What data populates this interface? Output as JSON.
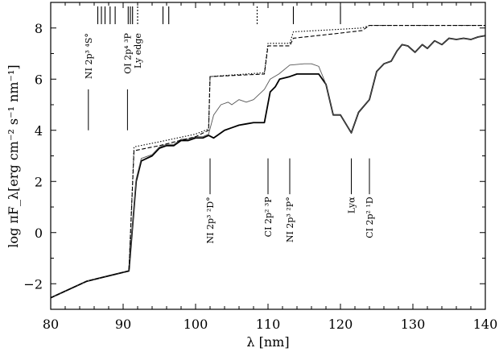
{
  "chart_data": {
    "type": "line",
    "xlabel": "λ [nm]",
    "ylabel": "log πF_λ[erg cm⁻² s⁻¹ nm⁻¹]",
    "xlim": [
      80,
      140
    ],
    "ylim": [
      -3,
      9
    ],
    "x_ticks": [
      80,
      90,
      100,
      110,
      120,
      130,
      140
    ],
    "y_ticks": [
      -2,
      0,
      2,
      4,
      6,
      8
    ],
    "series": [
      {
        "style": "solid-thick",
        "points": [
          [
            80,
            -2.55
          ],
          [
            85,
            -1.9
          ],
          [
            90.8,
            -1.5
          ],
          [
            91.8,
            2.0
          ],
          [
            92.5,
            2.8
          ],
          [
            94,
            3.0
          ],
          [
            95,
            3.3
          ],
          [
            96,
            3.4
          ],
          [
            97,
            3.4
          ],
          [
            98,
            3.6
          ],
          [
            99,
            3.6
          ],
          [
            100,
            3.7
          ],
          [
            101,
            3.7
          ],
          [
            101.8,
            3.8
          ],
          [
            102.5,
            3.7
          ],
          [
            103,
            3.8
          ],
          [
            104,
            4.0
          ],
          [
            105,
            4.1
          ],
          [
            106,
            4.2
          ],
          [
            107,
            4.25
          ],
          [
            108,
            4.3
          ],
          [
            109.5,
            4.3
          ],
          [
            110.3,
            5.5
          ],
          [
            111,
            5.7
          ],
          [
            111.6,
            6.0
          ],
          [
            113,
            6.1
          ],
          [
            114,
            6.2
          ],
          [
            116,
            6.2
          ],
          [
            117,
            6.2
          ],
          [
            118,
            5.8
          ],
          [
            119,
            4.6
          ],
          [
            120,
            4.6
          ],
          [
            121.5,
            3.9
          ],
          [
            122.5,
            4.7
          ],
          [
            124,
            5.2
          ],
          [
            125,
            6.3
          ],
          [
            126,
            6.6
          ],
          [
            127,
            6.7
          ],
          [
            127.8,
            7.1
          ],
          [
            128.5,
            7.35
          ],
          [
            129.3,
            7.3
          ],
          [
            130.3,
            7.05
          ],
          [
            131.3,
            7.35
          ],
          [
            132,
            7.2
          ],
          [
            133,
            7.5
          ],
          [
            134,
            7.35
          ],
          [
            135,
            7.6
          ],
          [
            136,
            7.55
          ],
          [
            137,
            7.6
          ],
          [
            138,
            7.55
          ],
          [
            139,
            7.65
          ],
          [
            140,
            7.7
          ]
        ]
      },
      {
        "style": "solid-thin",
        "points": [
          [
            80,
            -2.55
          ],
          [
            85,
            -1.9
          ],
          [
            90.8,
            -1.5
          ],
          [
            91.8,
            2.1
          ],
          [
            92.5,
            2.9
          ],
          [
            94,
            3.05
          ],
          [
            95,
            3.35
          ],
          [
            96,
            3.45
          ],
          [
            97,
            3.45
          ],
          [
            98,
            3.65
          ],
          [
            99,
            3.65
          ],
          [
            100,
            3.75
          ],
          [
            101,
            3.75
          ],
          [
            101.8,
            3.85
          ],
          [
            102.5,
            4.6
          ],
          [
            103.5,
            5.0
          ],
          [
            104.5,
            5.1
          ],
          [
            105,
            5.0
          ],
          [
            106,
            5.2
          ],
          [
            107,
            5.1
          ],
          [
            108,
            5.2
          ],
          [
            109.5,
            5.6
          ],
          [
            110.3,
            6.0
          ],
          [
            111.5,
            6.2
          ],
          [
            113,
            6.55
          ],
          [
            115,
            6.6
          ],
          [
            116,
            6.6
          ],
          [
            117,
            6.5
          ],
          [
            118,
            5.8
          ],
          [
            119,
            4.6
          ],
          [
            120,
            4.6
          ],
          [
            121.5,
            3.9
          ],
          [
            122.5,
            4.7
          ],
          [
            124,
            5.2
          ],
          [
            125,
            6.3
          ],
          [
            126,
            6.6
          ],
          [
            127,
            6.7
          ],
          [
            127.8,
            7.1
          ],
          [
            128.5,
            7.35
          ],
          [
            129.3,
            7.3
          ],
          [
            130.3,
            7.05
          ],
          [
            131.3,
            7.35
          ],
          [
            132,
            7.2
          ],
          [
            133,
            7.5
          ],
          [
            134,
            7.35
          ],
          [
            135,
            7.6
          ],
          [
            136,
            7.55
          ],
          [
            137,
            7.6
          ],
          [
            138,
            7.55
          ],
          [
            139,
            7.65
          ],
          [
            140,
            7.7
          ]
        ]
      },
      {
        "style": "dashed",
        "points": [
          [
            80,
            -2.55
          ],
          [
            85,
            -1.9
          ],
          [
            90.8,
            -1.5
          ],
          [
            91.5,
            3.2
          ],
          [
            95,
            3.4
          ],
          [
            100,
            3.75
          ],
          [
            101.8,
            4.0
          ],
          [
            102,
            6.1
          ],
          [
            109.5,
            6.2
          ],
          [
            110,
            7.3
          ],
          [
            113,
            7.3
          ],
          [
            113.5,
            7.6
          ],
          [
            120,
            7.8
          ],
          [
            123,
            7.9
          ],
          [
            124,
            8.1
          ],
          [
            140,
            8.1
          ]
        ]
      },
      {
        "style": "dotted",
        "points": [
          [
            80,
            -2.55
          ],
          [
            85,
            -1.9
          ],
          [
            90.8,
            -1.5
          ],
          [
            91.5,
            3.35
          ],
          [
            95,
            3.55
          ],
          [
            100,
            3.85
          ],
          [
            101.8,
            4.05
          ],
          [
            102,
            6.1
          ],
          [
            109.5,
            6.25
          ],
          [
            110,
            7.4
          ],
          [
            113,
            7.4
          ],
          [
            113.5,
            7.85
          ],
          [
            120,
            7.95
          ],
          [
            123,
            8.0
          ],
          [
            124,
            8.1
          ],
          [
            140,
            8.1
          ]
        ]
      }
    ],
    "top_ticks": [
      {
        "x": 86.5,
        "style": "solid"
      },
      {
        "x": 87.0,
        "style": "solid"
      },
      {
        "x": 87.5,
        "style": "solid"
      },
      {
        "x": 88.2,
        "style": "solid"
      },
      {
        "x": 88.9,
        "style": "solid"
      },
      {
        "x": 90.7,
        "style": "solid"
      },
      {
        "x": 91.0,
        "style": "solid"
      },
      {
        "x": 91.3,
        "style": "solid"
      },
      {
        "x": 92.0,
        "style": "dashed"
      },
      {
        "x": 95.5,
        "style": "solid"
      },
      {
        "x": 96.3,
        "style": "solid"
      },
      {
        "x": 108.5,
        "style": "dashed"
      },
      {
        "x": 113.5,
        "style": "solid"
      },
      {
        "x": 120.0,
        "style": "solid"
      }
    ],
    "annotations": [
      {
        "text": "NI 2p³ ⁴S°",
        "x": 85.2,
        "label_top_y": 7.8,
        "line_from": 5.6,
        "line_to": 4.0
      },
      {
        "text": "OI 2p⁴ ³P",
        "x": 90.6,
        "label_top_y": 7.8,
        "line_from": 5.6,
        "line_to": 4.0
      },
      {
        "text": "Ly edge",
        "x": 92.0,
        "label_top_y": 7.8,
        "line_from": null,
        "line_to": null
      },
      {
        "text": "NI 2p³ ²D°",
        "x": 102.0,
        "label_top_y": 1.4,
        "line_from": 2.9,
        "line_to": 1.5
      },
      {
        "text": "CI 2p² ³P",
        "x": 110.0,
        "label_top_y": 1.4,
        "line_from": 2.9,
        "line_to": 1.5
      },
      {
        "text": "NI 2p³ ²P°",
        "x": 113.0,
        "label_top_y": 1.4,
        "line_from": 2.9,
        "line_to": 1.5
      },
      {
        "text": "Lyα",
        "x": 121.5,
        "label_top_y": 1.4,
        "line_from": 2.9,
        "line_to": 1.5
      },
      {
        "text": "CI 2p² ¹D",
        "x": 124.0,
        "label_top_y": 1.4,
        "line_from": 2.9,
        "line_to": 1.5
      }
    ]
  }
}
